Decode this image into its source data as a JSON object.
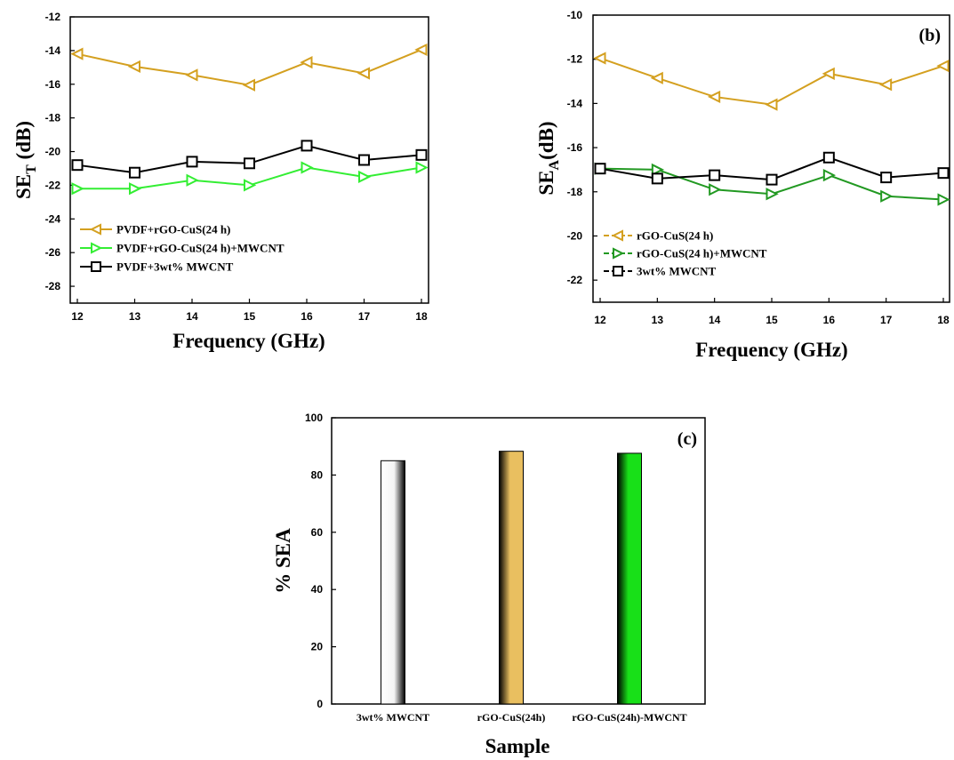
{
  "chart_data": [
    {
      "id": "a",
      "type": "line",
      "x": [
        12,
        13,
        14,
        15,
        16,
        17,
        18
      ],
      "xlim": [
        12,
        18
      ],
      "ylim": [
        -29,
        -12
      ],
      "xticks": [
        "12",
        "13",
        "14",
        "15",
        "16",
        "17",
        "18"
      ],
      "yticks": [
        "-12",
        "-14",
        "-16",
        "-18",
        "-20",
        "-22",
        "-24",
        "-26",
        "-28"
      ],
      "xlabel": "Frequency (GHz)",
      "ylabel": "SET (dB)",
      "ylabel_main": "SE",
      "ylabel_sub": "T",
      "ylabel_rest": " (dB)",
      "panel_label": "",
      "legend_position": "lower-left",
      "series": [
        {
          "name": "PVDF+rGO-CuS(24 h)",
          "marker": "triangle-left",
          "color": "#d4a020",
          "dash": "",
          "values": [
            -14.2,
            -14.95,
            -15.45,
            -16.05,
            -14.7,
            -15.35,
            -13.95
          ]
        },
        {
          "name": "PVDF+rGO-CuS(24 h)+MWCNT",
          "marker": "triangle-right",
          "color": "#33ee33",
          "dash": "",
          "values": [
            -22.2,
            -22.2,
            -21.7,
            -22.0,
            -20.95,
            -21.5,
            -20.95
          ]
        },
        {
          "name": "PVDF+3wt% MWCNT",
          "marker": "square",
          "color": "#000000",
          "dash": "",
          "values": [
            -20.8,
            -21.25,
            -20.6,
            -20.7,
            -19.65,
            -20.5,
            -20.2
          ]
        }
      ]
    },
    {
      "id": "b",
      "type": "line",
      "x": [
        12,
        13,
        14,
        15,
        16,
        17,
        18
      ],
      "xlim": [
        12,
        18
      ],
      "ylim": [
        -23,
        -10
      ],
      "xticks": [
        "12",
        "13",
        "14",
        "15",
        "16",
        "17",
        "18"
      ],
      "yticks": [
        "-10",
        "-12",
        "-14",
        "-16",
        "-18",
        "-20",
        "-22"
      ],
      "xlabel": "Frequency (GHz)",
      "ylabel": "SEA(dB)",
      "ylabel_main": "SE",
      "ylabel_sub": "A",
      "ylabel_rest": "(dB)",
      "panel_label": "(b)",
      "legend_position": "lower-left",
      "series": [
        {
          "name": "rGO-CuS(24 h)",
          "marker": "triangle-left",
          "color": "#d4a020",
          "dash": "6,3",
          "values": [
            -11.95,
            -12.85,
            -13.7,
            -14.05,
            -12.65,
            -13.15,
            -12.3
          ]
        },
        {
          "name": "rGO-CuS(24 h)+MWCNT",
          "marker": "triangle-right",
          "color": "#229922",
          "dash": "6,3",
          "values": [
            -16.95,
            -17.0,
            -17.9,
            -18.1,
            -17.25,
            -18.2,
            -18.35
          ]
        },
        {
          "name": "3wt% MWCNT",
          "marker": "square",
          "color": "#000000",
          "dash": "6,3",
          "values": [
            -16.95,
            -17.4,
            -17.25,
            -17.45,
            -16.45,
            -17.35,
            -17.15
          ]
        }
      ]
    },
    {
      "id": "c",
      "type": "bar",
      "categories": [
        "3wt% MWCNT",
        "rGO-CuS(24h)",
        "rGO-CuS(24h)-MWCNT"
      ],
      "values": [
        85.0,
        88.3,
        87.6
      ],
      "bar_colors": [
        "#ffffff",
        "#e9bf60",
        "#18e018"
      ],
      "ylim": [
        0,
        100
      ],
      "yticks": [
        "0",
        "20",
        "40",
        "60",
        "80",
        "100"
      ],
      "xlabel": "Sample",
      "ylabel": "% SEA",
      "panel_label": "(c)"
    }
  ]
}
